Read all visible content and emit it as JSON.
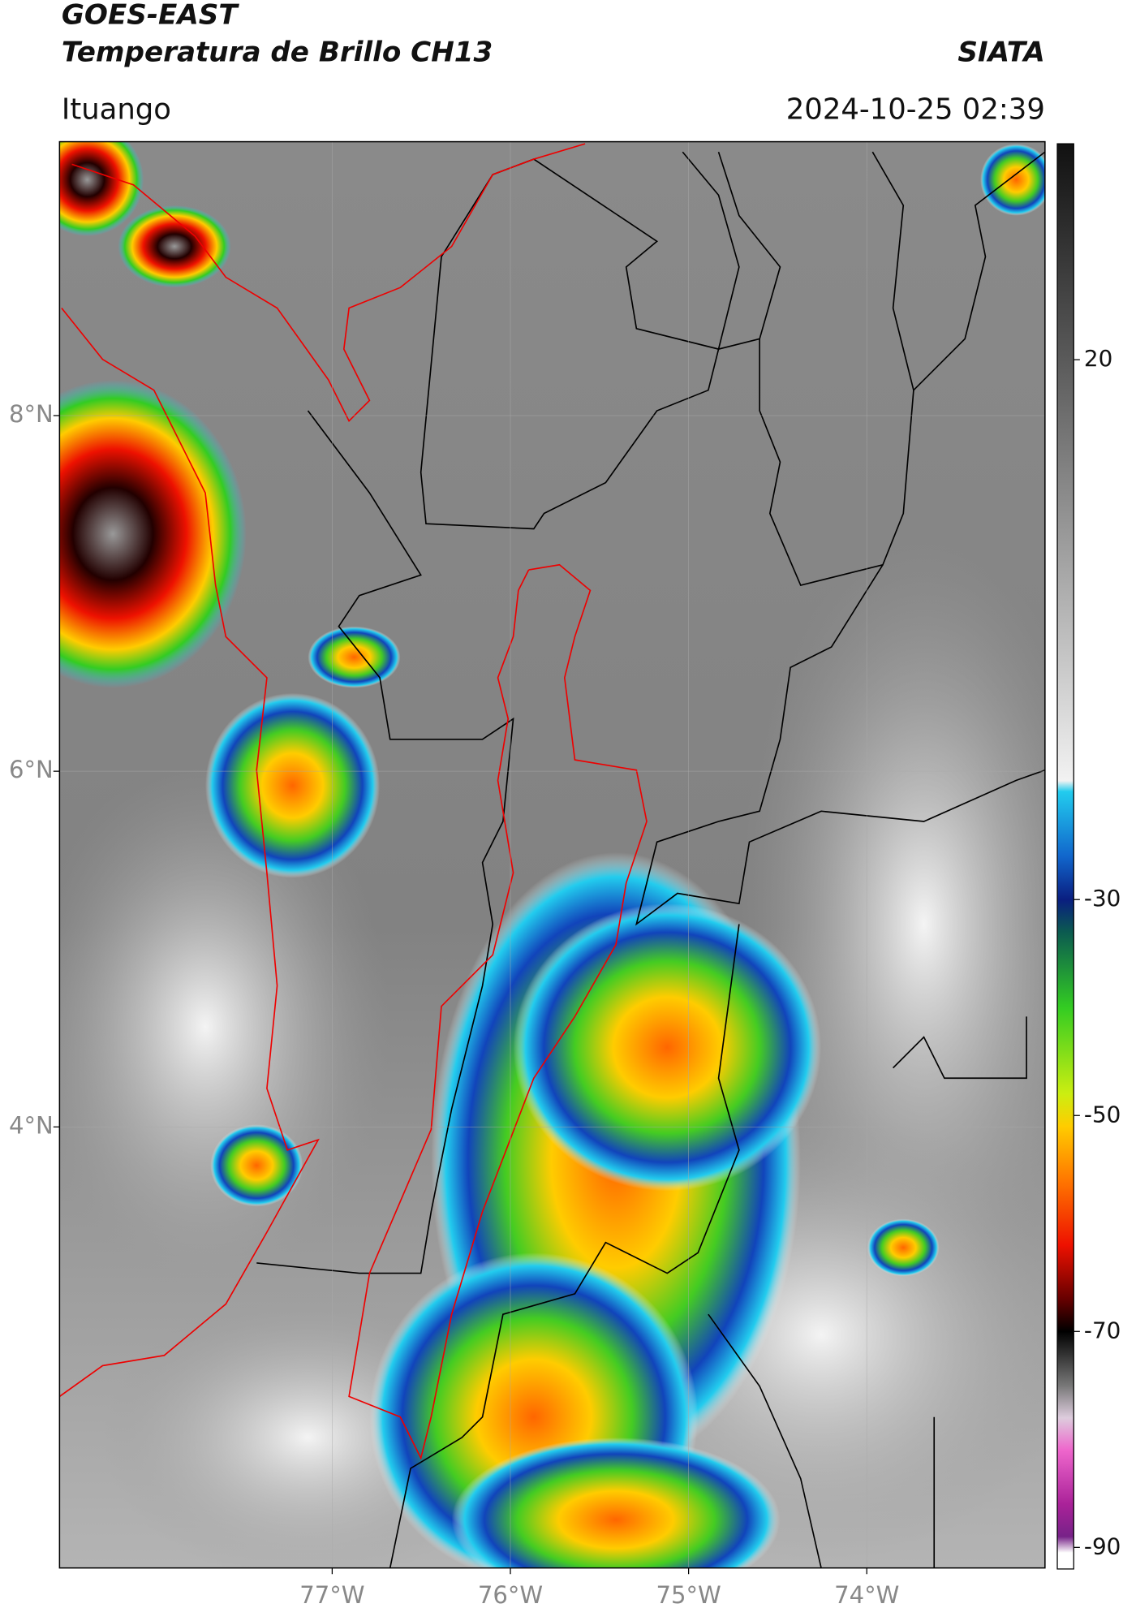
{
  "chart_data": {
    "type": "map",
    "title": "GOES-EAST",
    "subtitle": "Temperatura de Brillo CH13",
    "source": "SIATA",
    "location": "Ituango",
    "timestamp": "2024-10-25 02:39",
    "xlim": [
      -78.53,
      -73.0
    ],
    "xticks": [
      {
        "value": -77,
        "label": "77°W"
      },
      {
        "value": -76,
        "label": "76°W"
      },
      {
        "value": -75,
        "label": "75°W"
      },
      {
        "value": -74,
        "label": "74°W"
      }
    ],
    "ylim": [
      1.52,
      9.54
    ],
    "yticks": [
      {
        "value": 8,
        "label": "8°N"
      },
      {
        "value": 6,
        "label": "6°N"
      },
      {
        "value": 4,
        "label": "4°N"
      }
    ],
    "grid": true,
    "colorbar": {
      "lim": [
        -92,
        40
      ],
      "ticks": [
        20,
        -30,
        -50,
        -70,
        -90
      ],
      "stops": [
        {
          "value": 40,
          "color": "#111111"
        },
        {
          "value": 20,
          "color": "#5a5a5a"
        },
        {
          "value": -19,
          "color": "#f2f2f2"
        },
        {
          "value": -20,
          "color": "#22ccee"
        },
        {
          "value": -26,
          "color": "#1166cc"
        },
        {
          "value": -30,
          "color": "#0a1e80"
        },
        {
          "value": -33,
          "color": "#0b5a50"
        },
        {
          "value": -40,
          "color": "#33cc22"
        },
        {
          "value": -48,
          "color": "#ccee11"
        },
        {
          "value": -51,
          "color": "#ffcc00"
        },
        {
          "value": -56,
          "color": "#ff7700"
        },
        {
          "value": -62,
          "color": "#ee1100"
        },
        {
          "value": -67,
          "color": "#660000"
        },
        {
          "value": -70,
          "color": "#000000"
        },
        {
          "value": -75,
          "color": "#777777"
        },
        {
          "value": -78,
          "color": "#ddccdd"
        },
        {
          "value": -81,
          "color": "#ee66cc"
        },
        {
          "value": -86,
          "color": "#aa2299"
        },
        {
          "value": -89,
          "color": "#772288"
        },
        {
          "value": -90.5,
          "color": "#ffffff"
        }
      ]
    }
  }
}
